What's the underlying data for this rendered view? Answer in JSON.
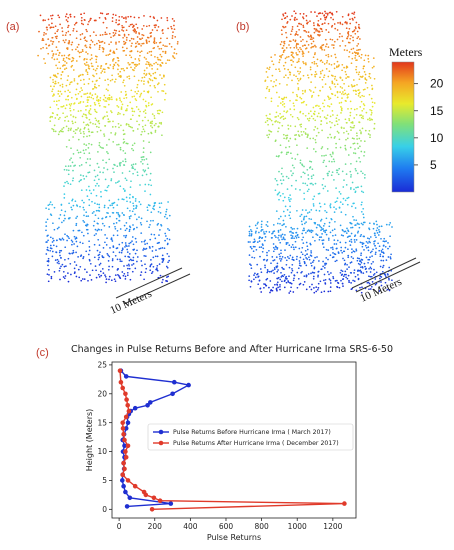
{
  "panels": {
    "a_label": "(a)",
    "b_label": "(b)",
    "c_label": "(c)",
    "scale_a": "10 Meters",
    "scale_b": "10 Meters"
  },
  "colorbar": {
    "title": "Meters",
    "ticks": [
      "20",
      "15",
      "10",
      "5"
    ],
    "tick_values": [
      20,
      15,
      10,
      5
    ],
    "range": [
      0,
      24
    ],
    "colors": [
      "#1a2bd6",
      "#1f7bf0",
      "#38d0e8",
      "#7fe07a",
      "#e8ea2c",
      "#f5a623",
      "#e2371c"
    ]
  },
  "chart_data": {
    "type": "line",
    "title": "Changes in Pulse Returns Before and After Hurricane Irma SRS-6-50",
    "xlabel": "Pulse Returns",
    "ylabel": "Height (Meters)",
    "xlim": [
      -40,
      1330
    ],
    "ylim": [
      -1.5,
      25.5
    ],
    "xticks": [
      0,
      200,
      400,
      600,
      800,
      1000,
      1200
    ],
    "yticks": [
      0,
      5,
      10,
      15,
      20,
      25
    ],
    "legend_position": "center-right",
    "grid": false,
    "series": [
      {
        "name": "Pulse Returns Before Hurricane Irma ( March 2017)",
        "color": "#1f2fd1",
        "x": [
          45,
          290,
          60,
          35,
          25,
          18,
          20,
          28,
          25,
          30,
          22,
          30,
          20,
          28,
          40,
          50,
          45,
          55,
          65,
          90,
          160,
          175,
          300,
          390,
          310,
          40,
          10
        ],
        "y": [
          0.5,
          1,
          2,
          3,
          4,
          5,
          6,
          7,
          8,
          9,
          10,
          11,
          12,
          13,
          14,
          15,
          16,
          16.5,
          17,
          17.5,
          18,
          18.5,
          20,
          21.5,
          22,
          23,
          24
        ]
      },
      {
        "name": "Pulse Returns After Hurricane Irma ( December 2017)",
        "color": "#e03a2a",
        "x": [
          185,
          1265,
          230,
          195,
          150,
          140,
          90,
          50,
          20,
          30,
          25,
          40,
          35,
          50,
          30,
          25,
          22,
          20,
          40,
          55,
          48,
          42,
          35,
          20,
          10,
          5
        ],
        "y": [
          0,
          1,
          1.5,
          2,
          2.5,
          3,
          4,
          5,
          6,
          7,
          8,
          9,
          10,
          11,
          12,
          13,
          14,
          15,
          16,
          17,
          18,
          19,
          20,
          21,
          22,
          24
        ]
      }
    ]
  }
}
